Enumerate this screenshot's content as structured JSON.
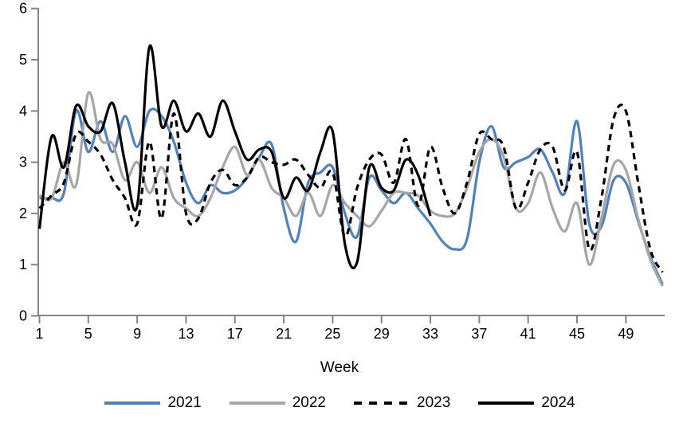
{
  "chart_data": {
    "type": "line",
    "title": "",
    "xlabel": "Week",
    "ylabel": "",
    "xlim": [
      1,
      52
    ],
    "ylim": [
      0,
      6
    ],
    "xticks": [
      1,
      5,
      9,
      13,
      17,
      21,
      25,
      29,
      33,
      37,
      41,
      45,
      49
    ],
    "yticks": [
      0,
      1,
      2,
      3,
      4,
      5,
      6
    ],
    "grid": false,
    "legend_position": "bottom",
    "axis_color": "#848484",
    "smooth_lines": true,
    "series": [
      {
        "name": "2021",
        "color": "#4F81BD",
        "style": "solid",
        "start_week": 1,
        "values": [
          2.3,
          2.3,
          2.4,
          4.0,
          3.2,
          3.8,
          3.2,
          3.9,
          3.3,
          4.0,
          3.9,
          3.4,
          2.6,
          2.2,
          2.55,
          2.4,
          2.45,
          2.7,
          3.1,
          3.35,
          2.1,
          1.45,
          2.6,
          2.8,
          2.9,
          2.0,
          1.55,
          2.7,
          2.45,
          2.2,
          2.4,
          2.1,
          1.8,
          1.45,
          1.3,
          1.5,
          3.0,
          3.7,
          2.9,
          3.0,
          3.1,
          3.25,
          2.8,
          2.4,
          3.8,
          1.8,
          1.75,
          2.65,
          2.6,
          1.85,
          1.15,
          0.62
        ]
      },
      {
        "name": "2022",
        "color": "#A6A6A6",
        "style": "solid",
        "start_week": 1,
        "values": [
          2.35,
          2.3,
          3.0,
          2.55,
          4.35,
          3.45,
          3.35,
          2.65,
          3.0,
          2.4,
          2.9,
          2.3,
          2.1,
          1.95,
          2.3,
          2.9,
          3.3,
          2.75,
          3.05,
          2.5,
          2.3,
          1.95,
          2.4,
          1.95,
          2.55,
          2.2,
          1.95,
          1.75,
          2.05,
          2.4,
          2.4,
          2.35,
          2.05,
          1.95,
          2.0,
          2.5,
          3.2,
          3.45,
          3.1,
          2.1,
          2.2,
          2.8,
          2.1,
          1.65,
          2.2,
          1.0,
          1.9,
          2.95,
          2.85,
          1.9,
          1.1,
          0.58
        ]
      },
      {
        "name": "2023",
        "color": "#000000",
        "style": "dashed",
        "start_week": 1,
        "values": [
          2.1,
          2.35,
          2.6,
          3.55,
          3.4,
          3.15,
          2.65,
          2.3,
          1.8,
          3.4,
          1.9,
          3.95,
          2.0,
          1.9,
          2.6,
          2.85,
          2.55,
          2.7,
          3.1,
          3.0,
          2.95,
          3.05,
          2.75,
          2.5,
          2.8,
          1.55,
          2.5,
          3.05,
          3.15,
          2.6,
          3.45,
          2.15,
          3.3,
          2.5,
          2.0,
          2.6,
          3.55,
          3.45,
          3.3,
          2.1,
          2.6,
          3.25,
          3.3,
          2.45,
          3.2,
          1.3,
          2.3,
          3.85,
          4.0,
          2.6,
          1.3,
          0.85
        ]
      },
      {
        "name": "2024",
        "color": "#000000",
        "style": "solid",
        "start_week": 1,
        "values": [
          1.7,
          3.5,
          2.9,
          4.1,
          3.7,
          3.6,
          4.15,
          3.0,
          2.15,
          5.25,
          3.7,
          4.2,
          3.6,
          3.95,
          3.5,
          4.2,
          3.6,
          3.05,
          3.25,
          3.2,
          2.3,
          2.7,
          2.45,
          3.2,
          3.6,
          1.4,
          1.05,
          2.9,
          2.5,
          2.45,
          3.05,
          2.75,
          1.95
        ]
      }
    ]
  }
}
